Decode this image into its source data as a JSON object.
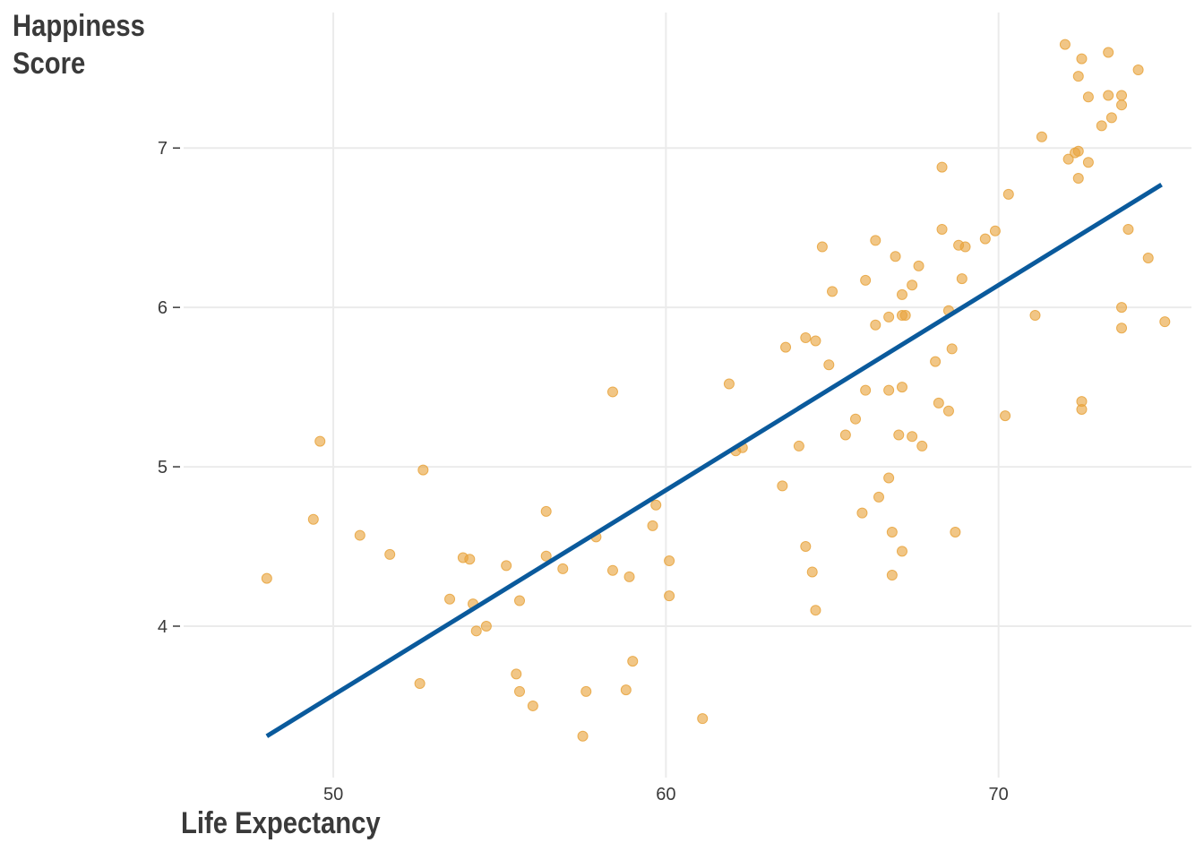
{
  "chart_data": {
    "type": "scatter",
    "xlabel": "Life Expectancy",
    "ylabel_line1": "Happiness",
    "ylabel_line2": "Score",
    "xlim": [
      45.5,
      75.8
    ],
    "ylim": [
      3.05,
      7.85
    ],
    "x_ticks": [
      50,
      60,
      70
    ],
    "y_ticks": [
      4,
      5,
      6,
      7
    ],
    "grid": true,
    "point_color": "#E8A33C",
    "line_color": "#0A5A9C",
    "trend_line": {
      "x": [
        48.0,
        74.9
      ],
      "y": [
        3.31,
        6.77
      ]
    },
    "points": [
      {
        "x": 48.0,
        "y": 4.3
      },
      {
        "x": 49.4,
        "y": 4.67
      },
      {
        "x": 49.6,
        "y": 5.16
      },
      {
        "x": 50.8,
        "y": 4.57
      },
      {
        "x": 51.7,
        "y": 4.45
      },
      {
        "x": 52.6,
        "y": 3.64
      },
      {
        "x": 52.7,
        "y": 4.98
      },
      {
        "x": 53.5,
        "y": 4.17
      },
      {
        "x": 53.9,
        "y": 4.43
      },
      {
        "x": 54.1,
        "y": 4.42
      },
      {
        "x": 54.2,
        "y": 4.14
      },
      {
        "x": 54.3,
        "y": 3.97
      },
      {
        "x": 54.6,
        "y": 4.0
      },
      {
        "x": 55.2,
        "y": 4.38
      },
      {
        "x": 55.5,
        "y": 3.7
      },
      {
        "x": 55.6,
        "y": 3.59
      },
      {
        "x": 55.6,
        "y": 4.16
      },
      {
        "x": 56.0,
        "y": 3.5
      },
      {
        "x": 56.4,
        "y": 4.72
      },
      {
        "x": 56.4,
        "y": 4.44
      },
      {
        "x": 56.9,
        "y": 4.36
      },
      {
        "x": 57.5,
        "y": 3.31
      },
      {
        "x": 57.6,
        "y": 3.59
      },
      {
        "x": 57.9,
        "y": 4.56
      },
      {
        "x": 58.4,
        "y": 5.47
      },
      {
        "x": 58.4,
        "y": 4.35
      },
      {
        "x": 58.8,
        "y": 3.6
      },
      {
        "x": 58.9,
        "y": 4.31
      },
      {
        "x": 59.0,
        "y": 3.78
      },
      {
        "x": 59.6,
        "y": 4.63
      },
      {
        "x": 59.7,
        "y": 4.76
      },
      {
        "x": 60.1,
        "y": 4.41
      },
      {
        "x": 60.1,
        "y": 4.19
      },
      {
        "x": 61.1,
        "y": 3.42
      },
      {
        "x": 61.9,
        "y": 5.52
      },
      {
        "x": 62.1,
        "y": 5.1
      },
      {
        "x": 62.3,
        "y": 5.12
      },
      {
        "x": 63.5,
        "y": 4.88
      },
      {
        "x": 63.6,
        "y": 5.75
      },
      {
        "x": 64.0,
        "y": 5.13
      },
      {
        "x": 64.2,
        "y": 5.81
      },
      {
        "x": 64.2,
        "y": 4.5
      },
      {
        "x": 64.4,
        "y": 4.34
      },
      {
        "x": 64.5,
        "y": 5.79
      },
      {
        "x": 64.5,
        "y": 4.1
      },
      {
        "x": 64.7,
        "y": 6.38
      },
      {
        "x": 64.9,
        "y": 5.64
      },
      {
        "x": 65.0,
        "y": 6.1
      },
      {
        "x": 65.4,
        "y": 5.2
      },
      {
        "x": 65.7,
        "y": 5.3
      },
      {
        "x": 65.9,
        "y": 4.71
      },
      {
        "x": 66.0,
        "y": 6.17
      },
      {
        "x": 66.0,
        "y": 5.48
      },
      {
        "x": 66.3,
        "y": 6.42
      },
      {
        "x": 66.3,
        "y": 5.89
      },
      {
        "x": 66.4,
        "y": 4.81
      },
      {
        "x": 66.7,
        "y": 5.94
      },
      {
        "x": 66.7,
        "y": 5.48
      },
      {
        "x": 66.7,
        "y": 4.93
      },
      {
        "x": 66.8,
        "y": 4.59
      },
      {
        "x": 66.8,
        "y": 4.32
      },
      {
        "x": 66.9,
        "y": 6.32
      },
      {
        "x": 67.0,
        "y": 5.2
      },
      {
        "x": 67.1,
        "y": 6.08
      },
      {
        "x": 67.1,
        "y": 5.95
      },
      {
        "x": 67.1,
        "y": 5.5
      },
      {
        "x": 67.1,
        "y": 4.47
      },
      {
        "x": 67.2,
        "y": 5.95
      },
      {
        "x": 67.4,
        "y": 6.14
      },
      {
        "x": 67.4,
        "y": 5.19
      },
      {
        "x": 67.6,
        "y": 6.26
      },
      {
        "x": 67.7,
        "y": 5.13
      },
      {
        "x": 68.1,
        "y": 5.66
      },
      {
        "x": 68.2,
        "y": 5.4
      },
      {
        "x": 68.3,
        "y": 6.88
      },
      {
        "x": 68.3,
        "y": 6.49
      },
      {
        "x": 68.5,
        "y": 5.98
      },
      {
        "x": 68.5,
        "y": 5.35
      },
      {
        "x": 68.6,
        "y": 5.74
      },
      {
        "x": 68.7,
        "y": 4.59
      },
      {
        "x": 68.8,
        "y": 6.39
      },
      {
        "x": 68.9,
        "y": 6.18
      },
      {
        "x": 69.0,
        "y": 6.38
      },
      {
        "x": 69.6,
        "y": 6.43
      },
      {
        "x": 69.9,
        "y": 6.48
      },
      {
        "x": 70.2,
        "y": 5.32
      },
      {
        "x": 70.3,
        "y": 6.71
      },
      {
        "x": 71.1,
        "y": 5.95
      },
      {
        "x": 71.3,
        "y": 7.07
      },
      {
        "x": 72.0,
        "y": 7.65
      },
      {
        "x": 72.1,
        "y": 6.93
      },
      {
        "x": 72.3,
        "y": 6.97
      },
      {
        "x": 72.4,
        "y": 7.45
      },
      {
        "x": 72.4,
        "y": 6.98
      },
      {
        "x": 72.4,
        "y": 6.81
      },
      {
        "x": 72.5,
        "y": 7.56
      },
      {
        "x": 72.5,
        "y": 5.41
      },
      {
        "x": 72.5,
        "y": 5.36
      },
      {
        "x": 72.7,
        "y": 7.32
      },
      {
        "x": 72.7,
        "y": 6.91
      },
      {
        "x": 73.1,
        "y": 7.14
      },
      {
        "x": 73.3,
        "y": 7.6
      },
      {
        "x": 73.3,
        "y": 7.33
      },
      {
        "x": 73.4,
        "y": 7.19
      },
      {
        "x": 73.7,
        "y": 7.33
      },
      {
        "x": 73.7,
        "y": 7.27
      },
      {
        "x": 73.7,
        "y": 6.0
      },
      {
        "x": 73.7,
        "y": 5.87
      },
      {
        "x": 73.9,
        "y": 6.49
      },
      {
        "x": 74.2,
        "y": 7.49
      },
      {
        "x": 74.5,
        "y": 6.31
      },
      {
        "x": 75.0,
        "y": 5.91
      }
    ]
  }
}
